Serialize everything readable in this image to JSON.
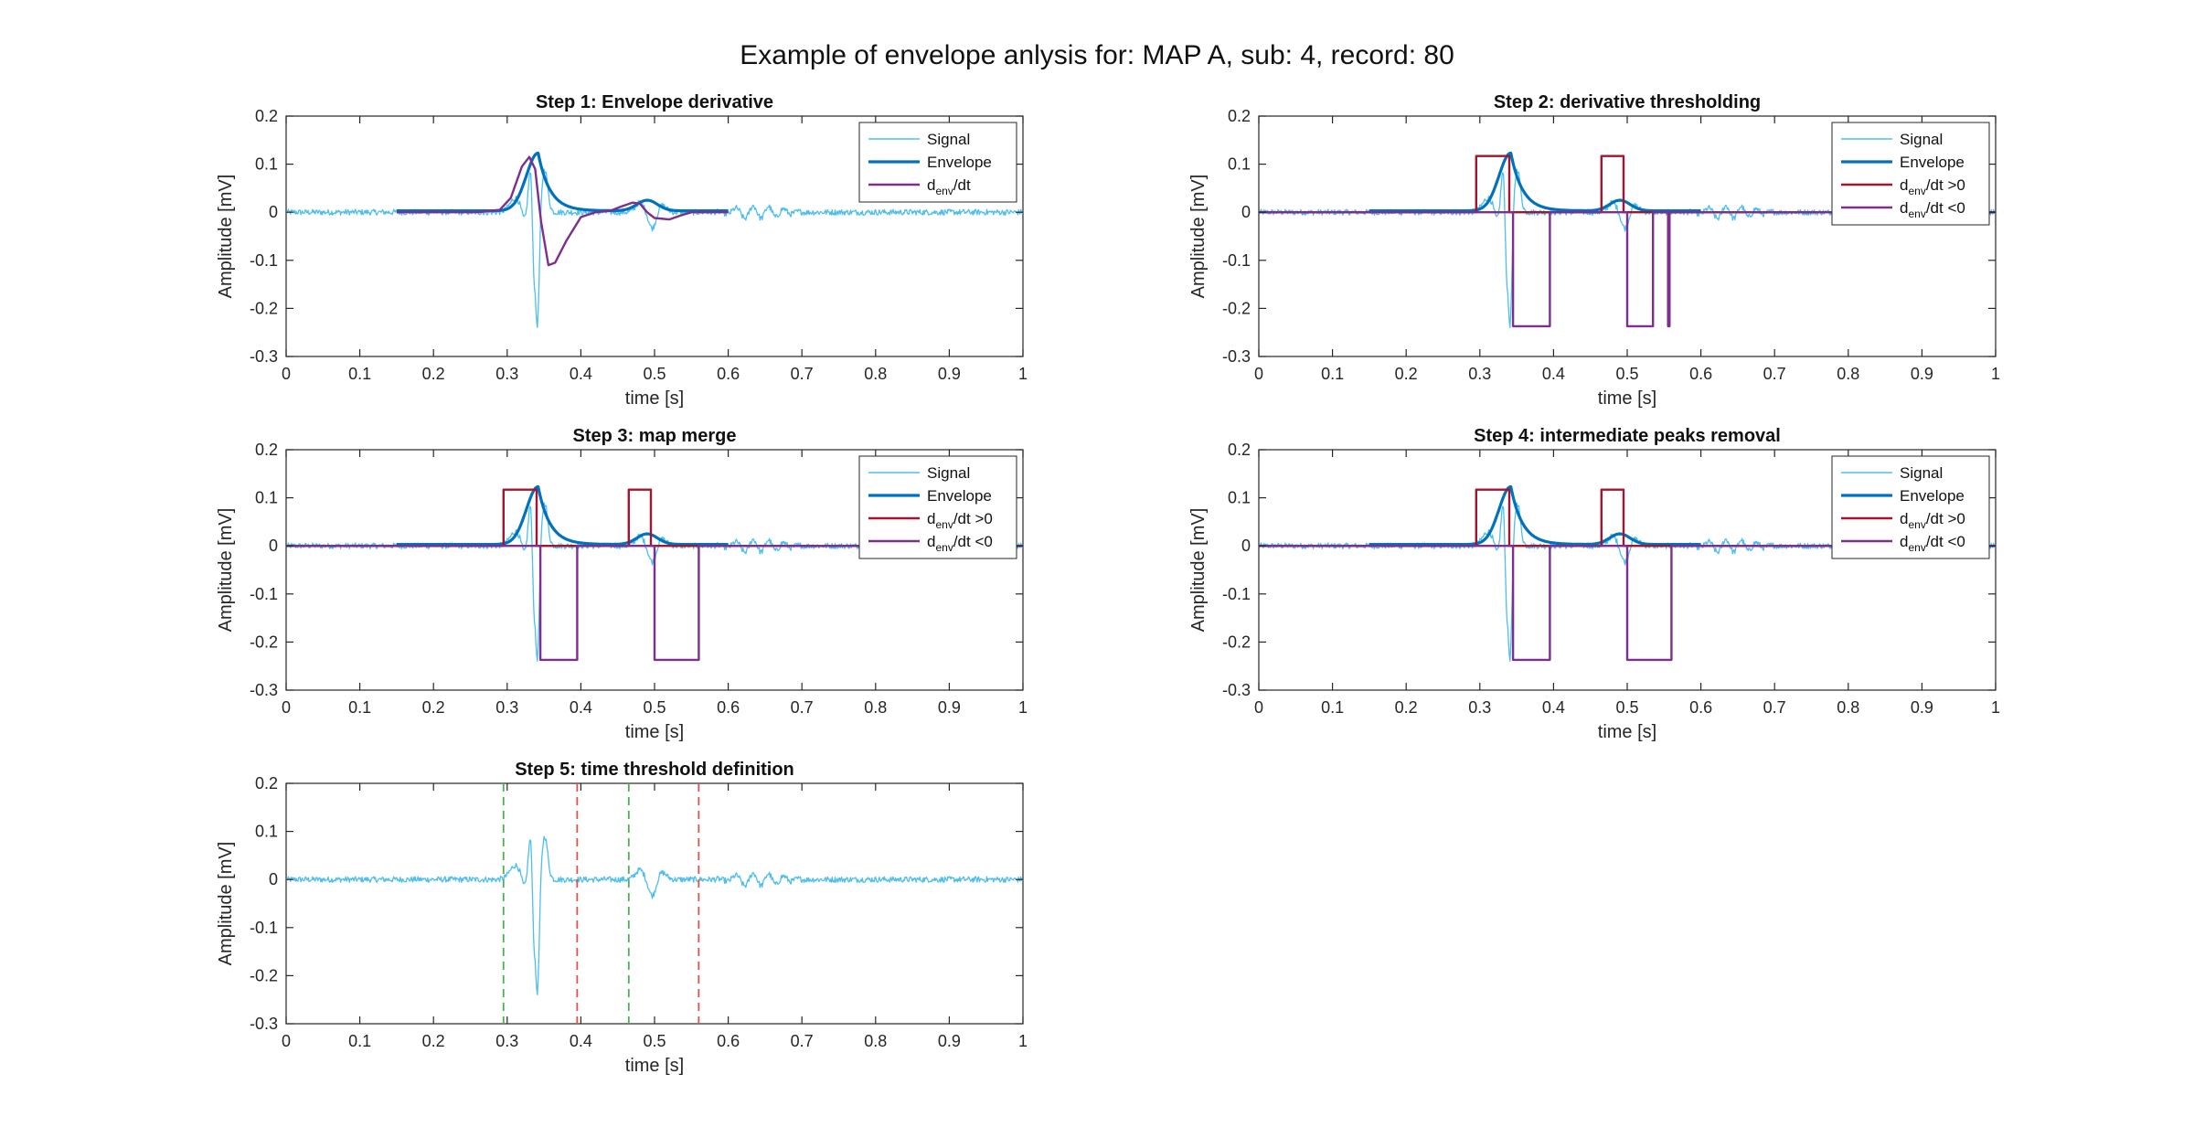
{
  "figure": {
    "suptitle": "Example of envelope anlysis for: MAP A, sub: 4, record: 80"
  },
  "colors": {
    "signal": "#4DBEEE",
    "envelope": "#0072BD",
    "denv": "#7E2F8E",
    "positive": "#A2142F",
    "negative": "#7E2F8E",
    "green_dash": "#4CAF50",
    "red_dash": "#D9534F"
  },
  "chart_data": [
    {
      "type": "line",
      "title": "Step 1: Envelope derivative",
      "xlabel": "time [s]",
      "ylabel": "Amplitude [mV]",
      "xlim": [
        0,
        1
      ],
      "ylim": [
        -0.3,
        0.2
      ],
      "xticks": [
        "0",
        "0.1",
        "0.2",
        "0.3",
        "0.4",
        "0.5",
        "0.6",
        "0.7",
        "0.8",
        "0.9",
        "1"
      ],
      "yticks": [
        "0.2",
        "0.1",
        "0",
        "-0.1",
        "-0.2",
        "-0.3"
      ],
      "grid": false,
      "legend_position": "top-right",
      "legend": [
        {
          "label": "Signal",
          "sub": "",
          "post": "",
          "color_key": "signal"
        },
        {
          "label": "Envelope",
          "sub": "",
          "post": "",
          "color_key": "envelope"
        },
        {
          "label": "d",
          "sub": "env",
          "post": "/dt",
          "color_key": "denv"
        }
      ],
      "series": [
        {
          "name": "Signal",
          "color_key": "signal",
          "kind": "signal"
        },
        {
          "name": "Envelope",
          "color_key": "envelope",
          "kind": "envelope"
        },
        {
          "name": "d_env/dt",
          "color_key": "denv",
          "x": [
            0.15,
            0.26,
            0.29,
            0.305,
            0.32,
            0.33,
            0.338,
            0.346,
            0.356,
            0.365,
            0.38,
            0.4,
            0.42,
            0.44,
            0.455,
            0.47,
            0.48,
            0.49,
            0.5,
            0.52,
            0.535,
            0.55,
            0.6
          ],
          "y": [
            0.0,
            0.0,
            0.005,
            0.03,
            0.095,
            0.115,
            0.09,
            -0.02,
            -0.11,
            -0.105,
            -0.06,
            -0.01,
            0.0,
            0.003,
            0.012,
            0.02,
            0.018,
            0.0,
            -0.012,
            -0.015,
            -0.007,
            0.0,
            0.0
          ]
        }
      ]
    },
    {
      "type": "line",
      "title": "Step 2: derivative thresholding",
      "xlabel": "time [s]",
      "ylabel": "Amplitude [mV]",
      "xlim": [
        0,
        1
      ],
      "ylim": [
        -0.3,
        0.2
      ],
      "xticks": [
        "0",
        "0.1",
        "0.2",
        "0.3",
        "0.4",
        "0.5",
        "0.6",
        "0.7",
        "0.8",
        "0.9",
        "1"
      ],
      "yticks": [
        "0.2",
        "0.1",
        "0",
        "-0.1",
        "-0.2",
        "-0.3"
      ],
      "grid": false,
      "legend_position": "top-right",
      "legend": [
        {
          "label": "Signal",
          "sub": "",
          "post": "",
          "color_key": "signal"
        },
        {
          "label": "Envelope",
          "sub": "",
          "post": "",
          "color_key": "envelope"
        },
        {
          "label": "d",
          "sub": "env",
          "post": "/dt >0",
          "color_key": "positive"
        },
        {
          "label": "d",
          "sub": "env",
          "post": "/dt <0",
          "color_key": "negative"
        }
      ],
      "series": [
        {
          "name": "Signal",
          "color_key": "signal",
          "kind": "signal"
        },
        {
          "name": "Envelope",
          "color_key": "envelope",
          "kind": "envelope"
        },
        {
          "name": "d_env/dt >0",
          "color_key": "positive",
          "x": [
            0,
            0.295,
            0.295,
            0.34,
            0.34,
            0.465,
            0.465,
            0.495,
            0.495,
            1
          ],
          "y": [
            0,
            0,
            0.117,
            0.117,
            0,
            0,
            0.117,
            0.117,
            0,
            0
          ]
        },
        {
          "name": "d_env/dt <0",
          "color_key": "negative",
          "x": [
            0,
            0.345,
            0.345,
            0.395,
            0.395,
            0.5,
            0.5,
            0.535,
            0.535,
            0.5555,
            0.5555,
            0.5575,
            0.5575,
            1
          ],
          "y": [
            0,
            0,
            -0.237,
            -0.237,
            0,
            0,
            -0.237,
            -0.237,
            0,
            0,
            -0.237,
            -0.237,
            0,
            0
          ]
        }
      ]
    },
    {
      "type": "line",
      "title": "Step 3: map merge",
      "xlabel": "time [s]",
      "ylabel": "Amplitude [mV]",
      "xlim": [
        0,
        1
      ],
      "ylim": [
        -0.3,
        0.2
      ],
      "xticks": [
        "0",
        "0.1",
        "0.2",
        "0.3",
        "0.4",
        "0.5",
        "0.6",
        "0.7",
        "0.8",
        "0.9",
        "1"
      ],
      "yticks": [
        "0.2",
        "0.1",
        "0",
        "-0.1",
        "-0.2",
        "-0.3"
      ],
      "grid": false,
      "legend_position": "top-right",
      "legend": [
        {
          "label": "Signal",
          "sub": "",
          "post": "",
          "color_key": "signal"
        },
        {
          "label": "Envelope",
          "sub": "",
          "post": "",
          "color_key": "envelope"
        },
        {
          "label": "d",
          "sub": "env",
          "post": "/dt >0",
          "color_key": "positive"
        },
        {
          "label": "d",
          "sub": "env",
          "post": "/dt <0",
          "color_key": "negative"
        }
      ],
      "series": [
        {
          "name": "Signal",
          "color_key": "signal",
          "kind": "signal"
        },
        {
          "name": "Envelope",
          "color_key": "envelope",
          "kind": "envelope"
        },
        {
          "name": "d_env/dt >0",
          "color_key": "positive",
          "x": [
            0,
            0.295,
            0.295,
            0.34,
            0.34,
            0.465,
            0.465,
            0.495,
            0.495,
            1
          ],
          "y": [
            0,
            0,
            0.117,
            0.117,
            0,
            0,
            0.117,
            0.117,
            0,
            0
          ]
        },
        {
          "name": "d_env/dt <0",
          "color_key": "negative",
          "x": [
            0,
            0.345,
            0.345,
            0.395,
            0.395,
            0.5,
            0.5,
            0.56,
            0.56,
            1
          ],
          "y": [
            0,
            0,
            -0.237,
            -0.237,
            0,
            0,
            -0.237,
            -0.237,
            0,
            0
          ]
        }
      ]
    },
    {
      "type": "line",
      "title": "Step 4: intermediate peaks removal",
      "xlabel": "time [s]",
      "ylabel": "Amplitude [mV]",
      "xlim": [
        0,
        1
      ],
      "ylim": [
        -0.3,
        0.2
      ],
      "xticks": [
        "0",
        "0.1",
        "0.2",
        "0.3",
        "0.4",
        "0.5",
        "0.6",
        "0.7",
        "0.8",
        "0.9",
        "1"
      ],
      "yticks": [
        "0.2",
        "0.1",
        "0",
        "-0.1",
        "-0.2",
        "-0.3"
      ],
      "grid": false,
      "legend_position": "top-right",
      "legend": [
        {
          "label": "Signal",
          "sub": "",
          "post": "",
          "color_key": "signal"
        },
        {
          "label": "Envelope",
          "sub": "",
          "post": "",
          "color_key": "envelope"
        },
        {
          "label": "d",
          "sub": "env",
          "post": "/dt >0",
          "color_key": "positive"
        },
        {
          "label": "d",
          "sub": "env",
          "post": "/dt <0",
          "color_key": "negative"
        }
      ],
      "series": [
        {
          "name": "Signal",
          "color_key": "signal",
          "kind": "signal"
        },
        {
          "name": "Envelope",
          "color_key": "envelope",
          "kind": "envelope"
        },
        {
          "name": "d_env/dt >0",
          "color_key": "positive",
          "x": [
            0,
            0.295,
            0.295,
            0.34,
            0.34,
            0.465,
            0.465,
            0.495,
            0.495,
            1
          ],
          "y": [
            0,
            0,
            0.117,
            0.117,
            0,
            0,
            0.117,
            0.117,
            0,
            0
          ]
        },
        {
          "name": "d_env/dt <0",
          "color_key": "negative",
          "x": [
            0,
            0.345,
            0.345,
            0.395,
            0.395,
            0.5,
            0.5,
            0.56,
            0.56,
            1
          ],
          "y": [
            0,
            0,
            -0.237,
            -0.237,
            0,
            0,
            -0.237,
            -0.237,
            0,
            0
          ]
        }
      ]
    },
    {
      "type": "line",
      "title": "Step 5: time threshold definition",
      "xlabel": "time [s]",
      "ylabel": "Amplitude [mV]",
      "xlim": [
        0,
        1
      ],
      "ylim": [
        -0.3,
        0.2
      ],
      "xticks": [
        "0",
        "0.1",
        "0.2",
        "0.3",
        "0.4",
        "0.5",
        "0.6",
        "0.7",
        "0.8",
        "0.9",
        "1"
      ],
      "yticks": [
        "0.2",
        "0.1",
        "0",
        "-0.1",
        "-0.2",
        "-0.3"
      ],
      "grid": false,
      "legend": [],
      "series": [
        {
          "name": "Signal",
          "color_key": "signal",
          "kind": "signal"
        }
      ],
      "vlines": [
        {
          "x": 0.295,
          "color_key": "green_dash"
        },
        {
          "x": 0.395,
          "color_key": "red_dash"
        },
        {
          "x": 0.465,
          "color_key": "green_dash"
        },
        {
          "x": 0.56,
          "color_key": "red_dash"
        }
      ]
    }
  ]
}
